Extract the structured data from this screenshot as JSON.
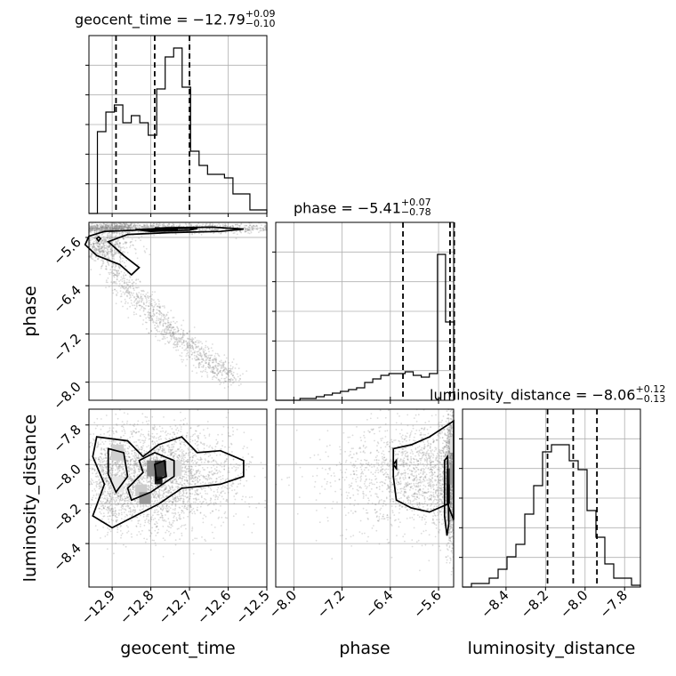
{
  "chart_data": {
    "type": "corner",
    "parameters": [
      {
        "name": "geocent_time",
        "title": "geocent_time = −12.79",
        "sup": "+0.09",
        "sub": "−0.10",
        "ticks": [
          -12.9,
          -12.8,
          -12.7,
          -12.6,
          -12.5
        ],
        "tick_labels": [
          "−12.9",
          "−12.8",
          "−12.7",
          "−12.6",
          "−12.5"
        ],
        "range": [
          -12.96,
          -12.5
        ],
        "quantiles": [
          -12.89,
          -12.79,
          -12.7
        ],
        "hist": [
          0,
          0.46,
          0.57,
          0.61,
          0.51,
          0.55,
          0.51,
          0.44,
          0.7,
          0.88,
          0.93,
          0.71,
          0.35,
          0.27,
          0.22,
          0.22,
          0.2,
          0.11,
          0.11,
          0.02,
          0.02
        ]
      },
      {
        "name": "phase",
        "title": "phase = −5.41",
        "sup": "+0.07",
        "sub": "−0.78",
        "ticks": [
          -8.0,
          -7.2,
          -6.4,
          -5.6
        ],
        "tick_labels": [
          "−8.0",
          "−7.2",
          "−6.4",
          "−5.6"
        ],
        "range": [
          -8.3,
          -5.35
        ],
        "quantiles": [
          -6.19,
          -5.41,
          -5.34
        ],
        "hist": [
          0,
          0,
          0,
          0.01,
          0.01,
          0.02,
          0.03,
          0.04,
          0.05,
          0.06,
          0.07,
          0.1,
          0.12,
          0.14,
          0.15,
          0.15,
          0.16,
          0.14,
          0.13,
          0.15,
          0.82,
          0.44
        ]
      },
      {
        "name": "luminosity_distance",
        "title": "luminosity_distance = −8.06",
        "sup": "+0.12",
        "sub": "−0.13",
        "ticks": [
          -8.4,
          -8.2,
          -8.0,
          -7.8
        ],
        "tick_labels": [
          "−8.4",
          "−8.2",
          "−8.0",
          "−7.8"
        ],
        "range": [
          -8.62,
          -7.72
        ],
        "quantiles": [
          -8.19,
          -8.06,
          -7.94
        ],
        "hist": [
          0,
          0.02,
          0.02,
          0.05,
          0.1,
          0.17,
          0.24,
          0.41,
          0.57,
          0.76,
          0.8,
          0.8,
          0.71,
          0.66,
          0.43,
          0.28,
          0.13,
          0.05,
          0.05,
          0.01
        ]
      }
    ],
    "axis_labels": [
      "geocent_time",
      "phase",
      "luminosity_distance"
    ],
    "row_labels": [
      "phase",
      "luminosity_distance"
    ],
    "grid": true
  },
  "colors": {
    "line": "#000000",
    "grid": "#b0b0b0",
    "points": "#808080",
    "density_dark": "#000000",
    "density_light": "#ffffff"
  }
}
